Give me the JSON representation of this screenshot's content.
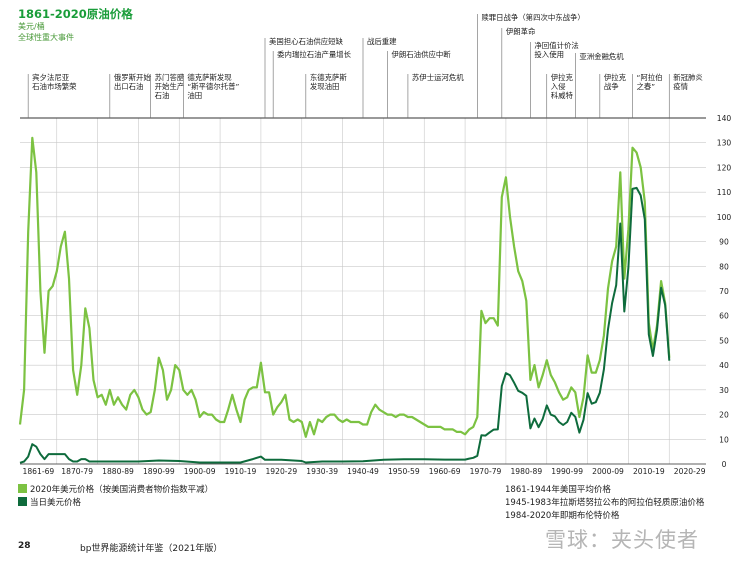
{
  "header": {
    "title": "1861-2020原油价格",
    "unit": "美元/桶",
    "events_label": "全球性重大事件"
  },
  "legend": {
    "items": [
      {
        "label": "2020年美元价格（按美国消费者物价指数平减）",
        "color": "#7cc242"
      },
      {
        "label": "当日美元价格",
        "color": "#0e6b3c"
      }
    ]
  },
  "notes": [
    "1861-1944年美国平均价格",
    "1945-1983年拉斯塔努拉公布的阿拉伯轻质原油价格",
    "1984-2020年即期布伦特价格"
  ],
  "footer": {
    "page_number": "28",
    "publication": "bp世界能源统计年鉴（2021年版）"
  },
  "watermark": "雪球：夹头使者",
  "events": [
    {
      "year": 1863,
      "lines": [
        "宾夕法尼亚",
        "石油市场繁荣"
      ]
    },
    {
      "year": 1883,
      "lines": [
        "俄罗斯开始",
        "出口石油"
      ]
    },
    {
      "year": 1893,
      "lines": [
        "苏门答腊",
        "开始生产",
        "石油"
      ]
    },
    {
      "year": 1901,
      "lines": [
        "德克萨斯发现",
        "“斯平德尔托普”",
        "油田"
      ]
    },
    {
      "year": 1921,
      "lines": [
        "美国担心石油供应短缺"
      ]
    },
    {
      "year": 1923,
      "lines": [
        "委内瑞拉石油产量增长"
      ]
    },
    {
      "year": 1931,
      "lines": [
        "东德克萨斯",
        "发现油田"
      ]
    },
    {
      "year": 1945,
      "lines": [
        "战后重建"
      ]
    },
    {
      "year": 1951,
      "lines": [
        "伊朗石油供应中断"
      ]
    },
    {
      "year": 1956,
      "lines": [
        "苏伊士运河危机"
      ]
    },
    {
      "year": 1973,
      "lines": [
        "赎罪日战争（第四次中东战争）"
      ]
    },
    {
      "year": 1979,
      "lines": [
        "伊朗革命"
      ]
    },
    {
      "year": 1986,
      "lines": [
        "净回值计价法",
        "投入使用"
      ]
    },
    {
      "year": 1990,
      "lines": [
        "伊拉克",
        "入侵",
        "科威特"
      ]
    },
    {
      "year": 1997,
      "lines": [
        "亚洲金融危机"
      ]
    },
    {
      "year": 2003,
      "lines": [
        "伊拉克",
        "战争"
      ]
    },
    {
      "year": 2011,
      "lines": [
        "“阿拉伯",
        "之春”"
      ]
    },
    {
      "year": 2020,
      "lines": [
        "新冠肺炎",
        "疫情"
      ]
    }
  ],
  "chart_data": {
    "type": "line",
    "title": "1861-2020原油价格",
    "ylabel": "美元/桶",
    "x_range": [
      1861,
      2020
    ],
    "ylim": [
      0,
      140
    ],
    "y_ticks": [
      0,
      10,
      20,
      30,
      40,
      50,
      60,
      70,
      80,
      90,
      100,
      110,
      120,
      130,
      140
    ],
    "x_tick_labels": [
      "1861-69",
      "1870-79",
      "1880-89",
      "1890-99",
      "1900-09",
      "1910-19",
      "1920-29",
      "1930-39",
      "1940-49",
      "1950-59",
      "1960-69",
      "1970-79",
      "1980-89",
      "1990-99",
      "2000-09",
      "2010-19",
      "2020-29"
    ],
    "grid": true,
    "series": [
      {
        "name": "2020年美元价格（按美国消费者物价指数平减）",
        "color": "#7cc242",
        "points": [
          [
            1861,
            16
          ],
          [
            1862,
            30
          ],
          [
            1863,
            94
          ],
          [
            1864,
            132
          ],
          [
            1865,
            118
          ],
          [
            1866,
            70
          ],
          [
            1867,
            45
          ],
          [
            1868,
            70
          ],
          [
            1869,
            72
          ],
          [
            1870,
            78
          ],
          [
            1871,
            88
          ],
          [
            1872,
            94
          ],
          [
            1873,
            75
          ],
          [
            1874,
            38
          ],
          [
            1875,
            28
          ],
          [
            1876,
            40
          ],
          [
            1877,
            63
          ],
          [
            1878,
            55
          ],
          [
            1879,
            34
          ],
          [
            1880,
            27
          ],
          [
            1881,
            28
          ],
          [
            1882,
            24
          ],
          [
            1883,
            30
          ],
          [
            1884,
            24
          ],
          [
            1885,
            27
          ],
          [
            1886,
            24
          ],
          [
            1887,
            22
          ],
          [
            1888,
            28
          ],
          [
            1889,
            30
          ],
          [
            1890,
            27
          ],
          [
            1891,
            22
          ],
          [
            1892,
            20
          ],
          [
            1893,
            21
          ],
          [
            1894,
            30
          ],
          [
            1895,
            43
          ],
          [
            1896,
            38
          ],
          [
            1897,
            26
          ],
          [
            1898,
            30
          ],
          [
            1899,
            40
          ],
          [
            1900,
            38
          ],
          [
            1901,
            30
          ],
          [
            1902,
            28
          ],
          [
            1903,
            30
          ],
          [
            1904,
            26
          ],
          [
            1905,
            19
          ],
          [
            1906,
            21
          ],
          [
            1907,
            20
          ],
          [
            1908,
            20
          ],
          [
            1909,
            18
          ],
          [
            1910,
            17
          ],
          [
            1911,
            17
          ],
          [
            1912,
            22
          ],
          [
            1913,
            28
          ],
          [
            1914,
            22
          ],
          [
            1915,
            17
          ],
          [
            1916,
            26
          ],
          [
            1917,
            30
          ],
          [
            1918,
            31
          ],
          [
            1919,
            31
          ],
          [
            1920,
            41
          ],
          [
            1921,
            29
          ],
          [
            1922,
            29
          ],
          [
            1923,
            20
          ],
          [
            1924,
            23
          ],
          [
            1925,
            25
          ],
          [
            1926,
            28
          ],
          [
            1927,
            18
          ],
          [
            1928,
            17
          ],
          [
            1929,
            18
          ],
          [
            1930,
            17
          ],
          [
            1931,
            11
          ],
          [
            1932,
            17
          ],
          [
            1933,
            12
          ],
          [
            1934,
            18
          ],
          [
            1935,
            17
          ],
          [
            1936,
            19
          ],
          [
            1937,
            20
          ],
          [
            1938,
            20
          ],
          [
            1939,
            18
          ],
          [
            1940,
            17
          ],
          [
            1941,
            18
          ],
          [
            1942,
            17
          ],
          [
            1943,
            17
          ],
          [
            1944,
            17
          ],
          [
            1945,
            16
          ],
          [
            1946,
            16
          ],
          [
            1947,
            21
          ],
          [
            1948,
            24
          ],
          [
            1949,
            22
          ],
          [
            1950,
            21
          ],
          [
            1951,
            20
          ],
          [
            1952,
            20
          ],
          [
            1953,
            19
          ],
          [
            1954,
            20
          ],
          [
            1955,
            20
          ],
          [
            1956,
            19
          ],
          [
            1957,
            19
          ],
          [
            1958,
            18
          ],
          [
            1959,
            17
          ],
          [
            1960,
            16
          ],
          [
            1961,
            15
          ],
          [
            1962,
            15
          ],
          [
            1963,
            15
          ],
          [
            1964,
            15
          ],
          [
            1965,
            14
          ],
          [
            1966,
            14
          ],
          [
            1967,
            14
          ],
          [
            1968,
            13
          ],
          [
            1969,
            13
          ],
          [
            1970,
            12
          ],
          [
            1971,
            14
          ],
          [
            1972,
            15
          ],
          [
            1973,
            19
          ],
          [
            1974,
            62
          ],
          [
            1975,
            57
          ],
          [
            1976,
            59
          ],
          [
            1977,
            59
          ],
          [
            1978,
            56
          ],
          [
            1979,
            108
          ],
          [
            1980,
            116
          ],
          [
            1981,
            100
          ],
          [
            1982,
            88
          ],
          [
            1983,
            78
          ],
          [
            1984,
            74
          ],
          [
            1985,
            66
          ],
          [
            1986,
            34
          ],
          [
            1987,
            40
          ],
          [
            1988,
            31
          ],
          [
            1989,
            36
          ],
          [
            1990,
            42
          ],
          [
            1991,
            36
          ],
          [
            1992,
            33
          ],
          [
            1993,
            29
          ],
          [
            1994,
            26
          ],
          [
            1995,
            27
          ],
          [
            1996,
            31
          ],
          [
            1997,
            29
          ],
          [
            1998,
            19
          ],
          [
            1999,
            27
          ],
          [
            2000,
            44
          ],
          [
            2001,
            37
          ],
          [
            2002,
            37
          ],
          [
            2003,
            42
          ],
          [
            2004,
            52
          ],
          [
            2005,
            71
          ],
          [
            2006,
            82
          ],
          [
            2007,
            88
          ],
          [
            2008,
            118
          ],
          [
            2009,
            75
          ],
          [
            2010,
            95
          ],
          [
            2011,
            128
          ],
          [
            2012,
            126
          ],
          [
            2013,
            120
          ],
          [
            2014,
            106
          ],
          [
            2015,
            57
          ],
          [
            2016,
            46
          ],
          [
            2017,
            56
          ],
          [
            2018,
            74
          ],
          [
            2019,
            65
          ],
          [
            2020,
            43
          ]
        ]
      },
      {
        "name": "当日美元价格",
        "color": "#0e6b3c",
        "points": [
          [
            1861,
            0.5
          ],
          [
            1862,
            1
          ],
          [
            1863,
            3
          ],
          [
            1864,
            8
          ],
          [
            1865,
            7
          ],
          [
            1866,
            4
          ],
          [
            1867,
            2
          ],
          [
            1868,
            4
          ],
          [
            1869,
            4
          ],
          [
            1870,
            4
          ],
          [
            1871,
            4
          ],
          [
            1872,
            4
          ],
          [
            1873,
            2
          ],
          [
            1874,
            1
          ],
          [
            1875,
            1
          ],
          [
            1876,
            2
          ],
          [
            1877,
            2
          ],
          [
            1878,
            1
          ],
          [
            1879,
            1
          ],
          [
            1880,
            1
          ],
          [
            1885,
            1
          ],
          [
            1890,
            1
          ],
          [
            1895,
            1.4
          ],
          [
            1900,
            1.2
          ],
          [
            1905,
            0.6
          ],
          [
            1910,
            0.6
          ],
          [
            1915,
            0.6
          ],
          [
            1918,
            2
          ],
          [
            1920,
            3
          ],
          [
            1921,
            1.7
          ],
          [
            1925,
            1.7
          ],
          [
            1930,
            1.2
          ],
          [
            1931,
            0.6
          ],
          [
            1935,
            1
          ],
          [
            1940,
            1
          ],
          [
            1945,
            1.1
          ],
          [
            1950,
            1.7
          ],
          [
            1955,
            1.9
          ],
          [
            1960,
            1.9
          ],
          [
            1965,
            1.8
          ],
          [
            1970,
            1.8
          ],
          [
            1971,
            2.2
          ],
          [
            1972,
            2.5
          ],
          [
            1973,
            3.3
          ],
          [
            1974,
            11.6
          ],
          [
            1975,
            11.5
          ],
          [
            1976,
            12.8
          ],
          [
            1977,
            13.9
          ],
          [
            1978,
            14
          ],
          [
            1979,
            31.6
          ],
          [
            1980,
            36.8
          ],
          [
            1981,
            35.9
          ],
          [
            1982,
            32.9
          ],
          [
            1983,
            29.6
          ],
          [
            1984,
            28.8
          ],
          [
            1985,
            27.6
          ],
          [
            1986,
            14.4
          ],
          [
            1987,
            18.4
          ],
          [
            1988,
            14.9
          ],
          [
            1989,
            18.2
          ],
          [
            1990,
            23.7
          ],
          [
            1991,
            20
          ],
          [
            1992,
            19.3
          ],
          [
            1993,
            17
          ],
          [
            1994,
            15.8
          ],
          [
            1995,
            17
          ],
          [
            1996,
            20.7
          ],
          [
            1997,
            19.1
          ],
          [
            1998,
            12.7
          ],
          [
            1999,
            17.9
          ],
          [
            2000,
            28.7
          ],
          [
            2001,
            24.4
          ],
          [
            2002,
            25
          ],
          [
            2003,
            28.8
          ],
          [
            2004,
            38.3
          ],
          [
            2005,
            54.5
          ],
          [
            2006,
            65.1
          ],
          [
            2007,
            72.4
          ],
          [
            2008,
            97.3
          ],
          [
            2009,
            61.7
          ],
          [
            2010,
            79.5
          ],
          [
            2011,
            111.3
          ],
          [
            2012,
            111.7
          ],
          [
            2013,
            108.7
          ],
          [
            2014,
            99
          ],
          [
            2015,
            52.4
          ],
          [
            2016,
            43.7
          ],
          [
            2017,
            54.2
          ],
          [
            2018,
            71.3
          ],
          [
            2019,
            64.2
          ],
          [
            2020,
            41.8
          ]
        ]
      }
    ]
  }
}
